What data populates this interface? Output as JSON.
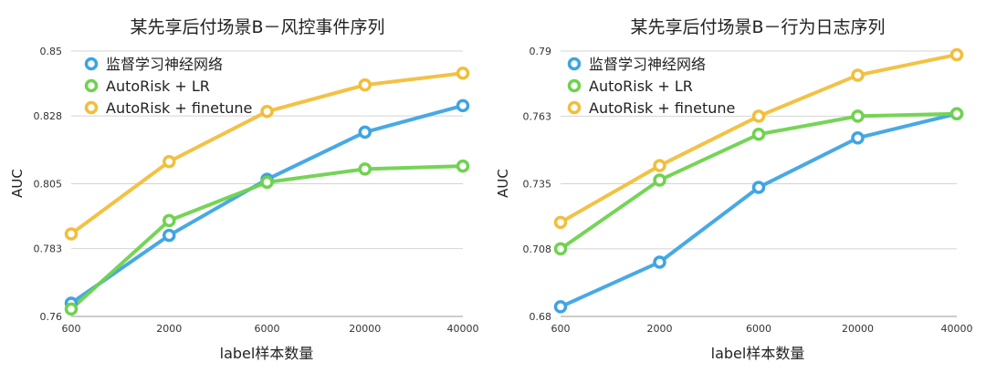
{
  "chart_data": [
    {
      "type": "line",
      "title": "某先享后付场景B－风控事件序列",
      "xlabel": "label样本数量",
      "ylabel": "AUC",
      "categories": [
        "600",
        "2000",
        "6000",
        "20000",
        "40000"
      ],
      "ylim": [
        0.76,
        0.85
      ],
      "yticks": [
        "0.85",
        "0.828",
        "0.805",
        "0.783",
        "0.76"
      ],
      "grid": true,
      "legend_position": "top-left",
      "series": [
        {
          "name": "监督学习神经网络",
          "color": "#3EA4E3",
          "values": [
            0.7645,
            0.7875,
            0.8065,
            0.8225,
            0.8315
          ]
        },
        {
          "name": "AutoRisk + LR",
          "color": "#6FD24E",
          "values": [
            0.7625,
            0.7925,
            0.8055,
            0.81,
            0.811
          ]
        },
        {
          "name": "AutoRisk +  finetune",
          "color": "#F2BE3A",
          "values": [
            0.788,
            0.8125,
            0.8295,
            0.8385,
            0.8425
          ]
        }
      ]
    },
    {
      "type": "line",
      "title": "某先享后付场景B－行为日志序列",
      "xlabel": "label样本数量",
      "ylabel": "AUC",
      "categories": [
        "600",
        "2000",
        "6000",
        "20000",
        "40000"
      ],
      "ylim": [
        0.68,
        0.79
      ],
      "yticks": [
        "0.79",
        "0.763",
        "0.735",
        "0.708",
        "0.68"
      ],
      "grid": true,
      "legend_position": "top-left",
      "series": [
        {
          "name": "监督学习神经网络",
          "color": "#3EA4E3",
          "values": [
            0.684,
            0.7025,
            0.7335,
            0.754,
            0.764
          ]
        },
        {
          "name": "AutoRisk + LR",
          "color": "#6FD24E",
          "values": [
            0.708,
            0.7365,
            0.7555,
            0.763,
            0.764
          ]
        },
        {
          "name": "AutoRisk +  finetune",
          "color": "#F2BE3A",
          "values": [
            0.719,
            0.7425,
            0.763,
            0.78,
            0.7885
          ]
        }
      ]
    }
  ]
}
